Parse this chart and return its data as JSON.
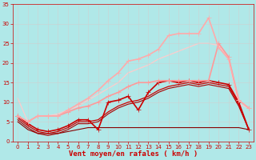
{
  "bg_color": "#b0e8e8",
  "grid_color": "#d0d0d0",
  "xlabel": "Vent moyen/en rafales ( km/h )",
  "xlabel_color": "#cc0000",
  "xlabel_fontsize": 6.5,
  "tick_color": "#cc0000",
  "tick_fontsize": 5,
  "xlim": [
    -0.5,
    23.5
  ],
  "ylim": [
    0,
    35
  ],
  "xticks": [
    0,
    1,
    2,
    3,
    4,
    5,
    6,
    7,
    8,
    9,
    10,
    11,
    12,
    13,
    14,
    15,
    16,
    17,
    18,
    19,
    20,
    21,
    22,
    23
  ],
  "yticks": [
    0,
    5,
    10,
    15,
    20,
    25,
    30,
    35
  ],
  "lines": [
    {
      "x": [
        0,
        1,
        2,
        3,
        4,
        5,
        6,
        7,
        8,
        9,
        10,
        11,
        12,
        13,
        14,
        15,
        16,
        17,
        18,
        19,
        20,
        21,
        22,
        23
      ],
      "y": [
        6.5,
        4.5,
        3.0,
        2.5,
        3.0,
        4.0,
        5.5,
        5.5,
        3.0,
        10.0,
        10.5,
        11.5,
        8.0,
        12.5,
        15.0,
        15.5,
        15.0,
        15.5,
        15.0,
        15.5,
        15.0,
        14.5,
        10.0,
        3.0
      ],
      "color": "#cc0000",
      "marker": "+",
      "markersize": 4,
      "linewidth": 1.2,
      "alpha": 1.0,
      "zorder": 5
    },
    {
      "x": [
        0,
        1,
        2,
        3,
        4,
        5,
        6,
        7,
        8,
        9,
        10,
        11,
        12,
        13,
        14,
        15,
        16,
        17,
        18,
        19,
        20,
        21,
        22,
        23
      ],
      "y": [
        6.0,
        4.0,
        2.5,
        2.0,
        2.5,
        3.5,
        5.0,
        5.0,
        5.5,
        7.5,
        9.0,
        10.0,
        10.5,
        11.5,
        13.0,
        14.0,
        14.5,
        15.0,
        14.5,
        15.0,
        14.5,
        14.0,
        9.5,
        3.0
      ],
      "color": "#cc0000",
      "marker": null,
      "markersize": 0,
      "linewidth": 0.9,
      "alpha": 1.0,
      "zorder": 4
    },
    {
      "x": [
        0,
        1,
        2,
        3,
        4,
        5,
        6,
        7,
        8,
        9,
        10,
        11,
        12,
        13,
        14,
        15,
        16,
        17,
        18,
        19,
        20,
        21,
        22,
        23
      ],
      "y": [
        5.5,
        3.5,
        2.0,
        1.5,
        2.0,
        3.0,
        4.5,
        4.5,
        5.0,
        7.0,
        8.5,
        9.5,
        10.0,
        11.0,
        12.5,
        13.5,
        14.0,
        14.5,
        14.0,
        14.5,
        14.0,
        13.5,
        9.0,
        3.0
      ],
      "color": "#aa0000",
      "marker": null,
      "markersize": 0,
      "linewidth": 0.8,
      "alpha": 1.0,
      "zorder": 3
    },
    {
      "x": [
        0,
        1,
        2,
        3,
        4,
        5,
        6,
        7,
        8,
        9,
        10,
        11,
        12,
        13,
        14,
        15,
        16,
        17,
        18,
        19,
        20,
        21,
        22,
        23
      ],
      "y": [
        5.0,
        3.0,
        2.0,
        2.0,
        2.0,
        2.5,
        3.0,
        3.5,
        3.5,
        3.5,
        3.5,
        3.5,
        3.5,
        3.5,
        3.5,
        3.5,
        3.5,
        3.5,
        3.5,
        3.5,
        3.5,
        3.5,
        3.5,
        3.0
      ],
      "color": "#880000",
      "marker": null,
      "markersize": 0,
      "linewidth": 0.8,
      "alpha": 1.0,
      "zorder": 2
    },
    {
      "x": [
        0,
        1,
        2,
        3,
        4,
        5,
        6,
        7,
        8,
        9,
        10,
        11,
        12,
        13,
        14,
        15,
        16,
        17,
        18,
        19,
        20,
        21,
        22,
        23
      ],
      "y": [
        6.5,
        5.0,
        6.5,
        6.5,
        6.5,
        7.5,
        8.5,
        9.0,
        10.0,
        11.5,
        12.5,
        14.0,
        15.0,
        15.0,
        15.5,
        15.5,
        15.5,
        15.5,
        15.5,
        15.5,
        25.0,
        21.5,
        10.5,
        8.5
      ],
      "color": "#ff9999",
      "marker": "+",
      "markersize": 4,
      "linewidth": 1.2,
      "alpha": 1.0,
      "zorder": 6
    },
    {
      "x": [
        0,
        1,
        2,
        3,
        4,
        5,
        6,
        7,
        8,
        9,
        10,
        11,
        12,
        13,
        14,
        15,
        16,
        17,
        18,
        19,
        20,
        21,
        22,
        23
      ],
      "y": [
        6.5,
        5.0,
        6.5,
        6.5,
        6.5,
        8.0,
        9.5,
        11.0,
        13.0,
        15.5,
        17.5,
        20.5,
        21.0,
        22.0,
        23.5,
        27.0,
        27.5,
        27.5,
        27.5,
        31.5,
        24.0,
        21.0,
        10.5,
        8.5
      ],
      "color": "#ffaaaa",
      "marker": "+",
      "markersize": 4,
      "linewidth": 1.2,
      "alpha": 1.0,
      "zorder": 7
    },
    {
      "x": [
        0,
        1,
        2,
        3,
        4,
        5,
        6,
        7,
        8,
        9,
        10,
        11,
        12,
        13,
        14,
        15,
        16,
        17,
        18,
        19,
        20,
        21,
        22,
        23
      ],
      "y": [
        11.0,
        5.0,
        6.5,
        6.5,
        7.0,
        8.0,
        9.0,
        10.5,
        12.0,
        13.5,
        15.0,
        17.5,
        18.5,
        19.5,
        21.0,
        22.0,
        23.0,
        24.0,
        25.0,
        25.0,
        24.5,
        21.0,
        9.5,
        8.5
      ],
      "color": "#ffcccc",
      "marker": null,
      "markersize": 0,
      "linewidth": 1.0,
      "alpha": 0.9,
      "zorder": 1
    }
  ]
}
